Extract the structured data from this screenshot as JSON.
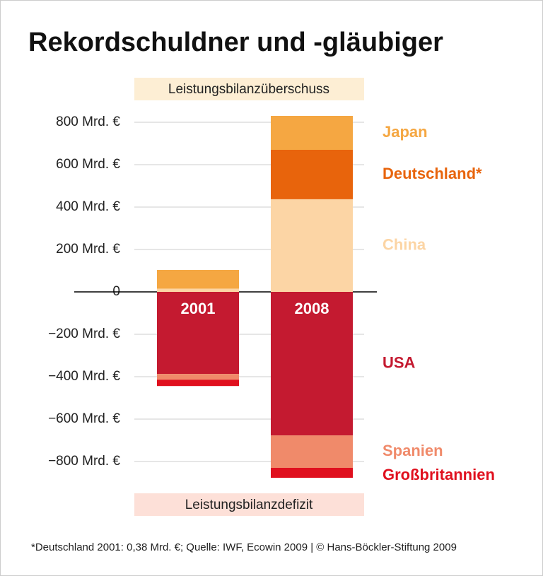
{
  "chart_data": {
    "type": "stacked-bar",
    "title": "Rekordschuldner und -gläubiger",
    "annotations": [
      "Leistungsbilanzüberschuss",
      "Leistungsbilanzdefizit"
    ],
    "footnote": "*Deutschland 2001: 0,38 Mrd. €; Quelle: IWF, Ecowin 2009 | © Hans-Böckler-Stiftung 2009",
    "categories": [
      "2001",
      "2008"
    ],
    "series": [
      {
        "name": "China",
        "color": "#fcd5a5",
        "values": [
          15,
          437
        ]
      },
      {
        "name": "Deutschland*",
        "color": "#e8640c",
        "values": [
          0.38,
          233
        ]
      },
      {
        "name": "Japan",
        "color": "#f5a742",
        "values": [
          88,
          160
        ]
      },
      {
        "name": "USA",
        "color": "#c41a30",
        "values": [
          -387,
          -677
        ]
      },
      {
        "name": "Spanien",
        "color": "#f08a6a",
        "values": [
          -27,
          -153
        ]
      },
      {
        "name": "Großbritannien",
        "color": "#e0101e",
        "values": [
          -30,
          -47
        ]
      }
    ],
    "ylim": [
      -900,
      900
    ],
    "yticks": [
      {
        "value": -800,
        "label": "−800 Mrd. €"
      },
      {
        "value": -600,
        "label": "−600 Mrd. €"
      },
      {
        "value": -400,
        "label": "−400 Mrd. €"
      },
      {
        "value": -200,
        "label": "−200 Mrd. €"
      },
      0,
      {
        "value": 200,
        "label": "200 Mrd. €"
      },
      {
        "value": 400,
        "label": "400 Mrd. €"
      },
      {
        "value": 600,
        "label": "600 Mrd. €"
      },
      {
        "value": 800,
        "label": "800 Mrd. €"
      }
    ],
    "grid": true
  }
}
